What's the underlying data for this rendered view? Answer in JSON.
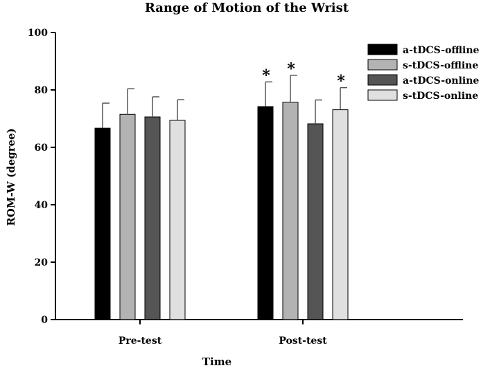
{
  "chart_data": {
    "type": "bar",
    "title": "Range of Motion of the Wrist",
    "xlabel": "Time",
    "ylabel": "ROM-W (degree)",
    "ylim": [
      0,
      100
    ],
    "yticks": [
      0,
      20,
      40,
      60,
      80,
      100
    ],
    "categories": [
      "Pre-test",
      "Post-test"
    ],
    "legend_position": "top-right",
    "series": [
      {
        "name": "a-tDCS-offline",
        "color": "#000000",
        "values": [
          66.7,
          74.2
        ],
        "errors": [
          8.7,
          8.6
        ],
        "significant": [
          false,
          true
        ]
      },
      {
        "name": "s-tDCS-offline",
        "color": "#b3b3b3",
        "values": [
          71.5,
          75.7
        ],
        "errors": [
          8.9,
          9.4
        ],
        "significant": [
          false,
          true
        ]
      },
      {
        "name": "a-tDCS-online",
        "color": "#555555",
        "values": [
          70.6,
          68.2
        ],
        "errors": [
          7.0,
          8.3
        ],
        "significant": [
          false,
          false
        ]
      },
      {
        "name": "s-tDCS-online",
        "color": "#e0e0e0",
        "values": [
          69.4,
          73.1
        ],
        "errors": [
          7.2,
          7.7
        ],
        "significant": [
          false,
          true
        ]
      }
    ],
    "significance_marker": "*"
  }
}
